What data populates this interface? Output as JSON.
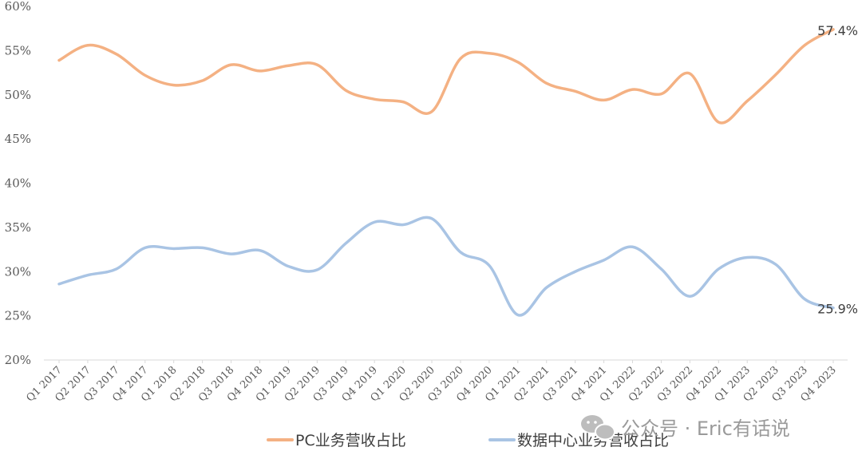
{
  "chart_data": {
    "type": "line",
    "categories": [
      "Q1 2017",
      "Q2 2017",
      "Q3 2017",
      "Q4 2017",
      "Q1 2018",
      "Q2 2018",
      "Q3 2018",
      "Q4 2018",
      "Q1 2019",
      "Q2 2019",
      "Q3 2019",
      "Q4 2019",
      "Q1 2020",
      "Q2 2020",
      "Q3 2020",
      "Q4 2020",
      "Q1 2021",
      "Q2 2021",
      "Q3 2021",
      "Q4 2021",
      "Q1 2022",
      "Q2 2022",
      "Q3 2022",
      "Q4 2022",
      "Q1 2023",
      "Q2 2023",
      "Q3 2023",
      "Q4 2023"
    ],
    "series": [
      {
        "name": "PC业务营收占比",
        "color": "#F4B183",
        "values": [
          53.9,
          55.6,
          54.6,
          52.2,
          51.1,
          51.6,
          53.4,
          52.7,
          53.3,
          53.4,
          50.5,
          49.5,
          49.2,
          48.1,
          54.1,
          54.7,
          53.7,
          51.3,
          50.4,
          49.4,
          50.6,
          50.1,
          52.4,
          46.9,
          49.3,
          52.3,
          55.6,
          57.4
        ]
      },
      {
        "name": "数据中心业务营收占比",
        "color": "#A9C4E4",
        "values": [
          28.6,
          29.6,
          30.3,
          32.7,
          32.6,
          32.7,
          32.0,
          32.4,
          30.6,
          30.2,
          33.2,
          35.6,
          35.3,
          36.0,
          32.2,
          30.7,
          25.1,
          28.2,
          30.0,
          31.3,
          32.8,
          30.3,
          27.2,
          30.3,
          31.6,
          30.8,
          26.9,
          25.9
        ]
      }
    ],
    "end_labels": [
      "57.4%",
      "25.9%"
    ],
    "yticks": [
      "20%",
      "25%",
      "30%",
      "35%",
      "40%",
      "45%",
      "50%",
      "55%",
      "60%"
    ],
    "ylim": [
      20,
      60
    ],
    "grid": false,
    "legend_position": "bottom"
  },
  "watermark": {
    "text": "公众号 · Eric有话说",
    "icon": "wechat-icon"
  }
}
